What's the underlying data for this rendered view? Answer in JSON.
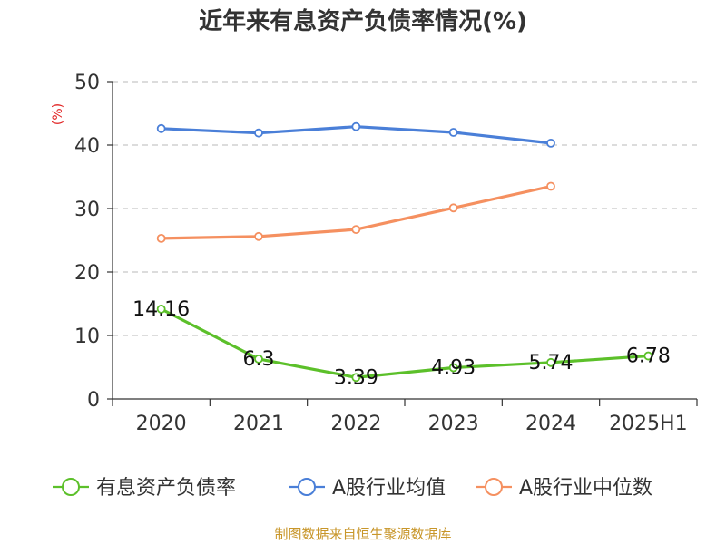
{
  "chart_data": {
    "type": "line",
    "title": "近年来有息资产负债率情况(%)",
    "ylabel": "(%)",
    "xlabel": "",
    "categories": [
      "2020",
      "2021",
      "2022",
      "2023",
      "2024",
      "2025H1"
    ],
    "ylim": [
      0,
      50
    ],
    "yticks": [
      0,
      10,
      20,
      30,
      40,
      50
    ],
    "grid": true,
    "legend_position": "bottom",
    "series": [
      {
        "name": "有息资产负债率",
        "color": "#5cc02a",
        "values": [
          14.16,
          6.3,
          3.39,
          4.93,
          5.74,
          6.78
        ],
        "labels": [
          "14.16",
          "6.3",
          "3.39",
          "4.93",
          "5.74",
          "6.78"
        ]
      },
      {
        "name": "A股行业均值",
        "color": "#4a7fd8",
        "values": [
          42.6,
          41.9,
          42.9,
          42.0,
          40.3,
          null
        ]
      },
      {
        "name": "A股行业中位数",
        "color": "#f59060",
        "values": [
          25.3,
          25.6,
          26.7,
          30.1,
          33.5,
          null
        ]
      }
    ],
    "source": "制图数据来自恒生聚源数据库"
  }
}
